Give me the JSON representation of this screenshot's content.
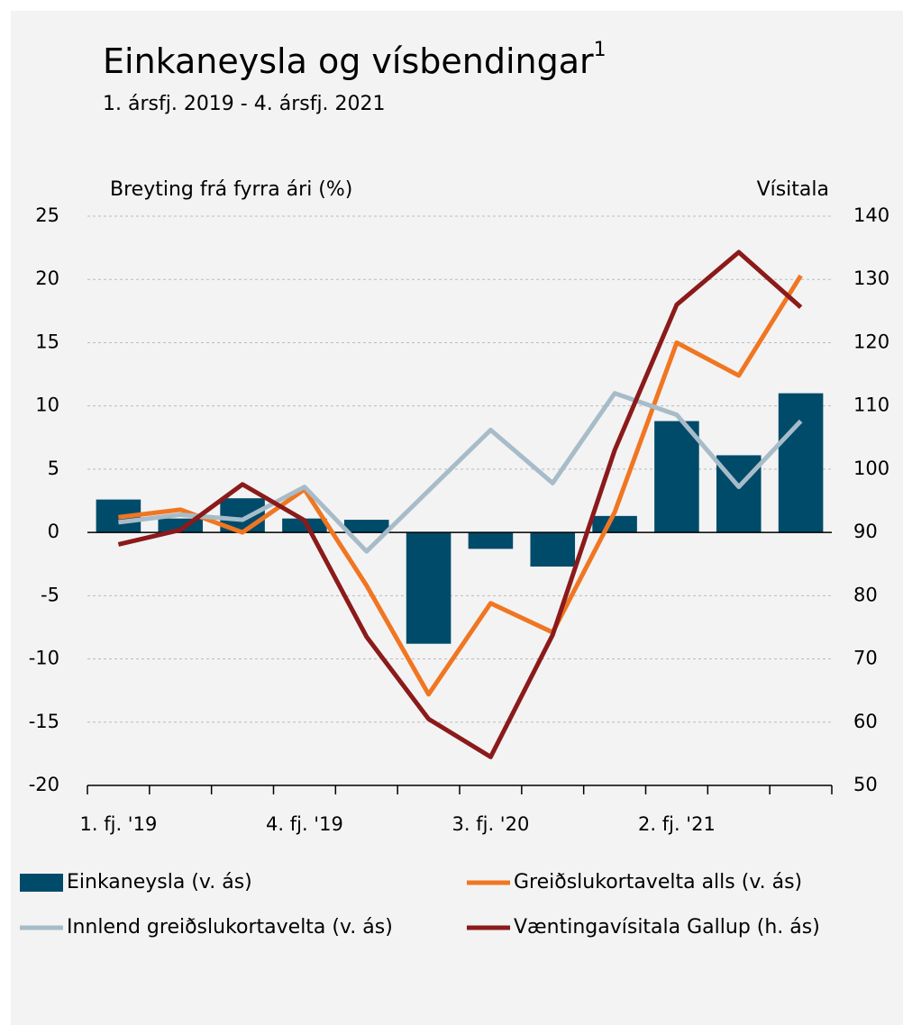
{
  "chart_data": {
    "type": "bar_line",
    "title": "Einkaneysla og vísbendingar",
    "title_note": "1",
    "subtitle": "1. ársfj. 2019 - 4. ársfj. 2021",
    "y_label": "Breyting frá fyrra ári (%)",
    "y2_label": "Vísitala",
    "categories": [
      "1. fj. '19",
      null,
      null,
      "4. fj. '19",
      null,
      null,
      "3. fj. '20",
      null,
      null,
      "2. fj. '21",
      null,
      null
    ],
    "series": [
      {
        "name": "Einkaneysla (v. ás)",
        "type": "bar",
        "color": "#004b6a",
        "values": [
          2.6,
          1.1,
          2.7,
          1.1,
          1.0,
          -8.8,
          -1.3,
          -2.7,
          1.3,
          8.8,
          6.1,
          11.0
        ]
      },
      {
        "name": "Greiðslukortavelta alls (v. ás)",
        "type": "line",
        "color": "#f07622",
        "values": [
          1.2,
          1.8,
          0.0,
          3.4,
          -4.2,
          -12.8,
          -5.6,
          -7.9,
          1.6,
          15.0,
          12.4,
          20.3
        ]
      },
      {
        "name": "Innlend greiðslukortavelta (v. ás)",
        "type": "line",
        "color": "#a7bcc8",
        "values": [
          0.8,
          1.4,
          1.0,
          3.6,
          -1.5,
          3.3,
          8.1,
          3.9,
          11.0,
          9.3,
          3.6,
          8.8
        ]
      },
      {
        "name": "Væntingavísitala Gallup (h. ás)",
        "type": "line",
        "axis": "y2",
        "color": "#8b1a1a",
        "values": [
          88.1,
          90.4,
          97.6,
          91.9,
          73.5,
          60.5,
          54.5,
          73.8,
          103.0,
          126.0,
          134.3,
          125.6
        ]
      }
    ],
    "ylim": [
      -20,
      25
    ],
    "yticks": [
      25,
      20,
      15,
      10,
      5,
      0,
      -5,
      -10,
      -15,
      -20
    ],
    "y2lim": [
      50,
      140
    ],
    "y2ticks": [
      140,
      130,
      120,
      110,
      100,
      90,
      80,
      70,
      60,
      50
    ],
    "grid": true
  }
}
